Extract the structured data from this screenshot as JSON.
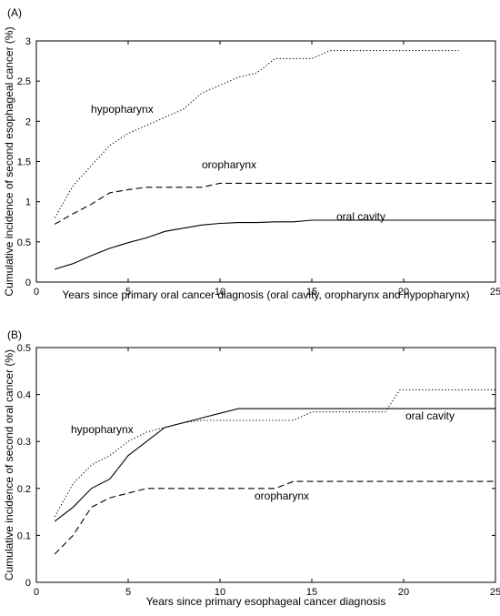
{
  "chart_data": [
    {
      "type": "line",
      "panel_label": "(A)",
      "xlabel": "Years since primary oral cancer diagnosis (oral cavity, oropharynx and hypopharynx)",
      "ylabel": "Cumulative incidence of second esophageal cancer (%)",
      "xlim": [
        0,
        25
      ],
      "ylim": [
        0,
        3
      ],
      "xticks": [
        0,
        5,
        10,
        15,
        20,
        25
      ],
      "yticks": [
        0,
        0.5,
        1,
        1.5,
        2,
        2.5,
        3
      ],
      "grid": false,
      "series": [
        {
          "name": "hypopharynx",
          "style": "dotted",
          "x": [
            1,
            1.5,
            2,
            3,
            4,
            5,
            6,
            7,
            8,
            9,
            10,
            11,
            12,
            13,
            14,
            15,
            16,
            17,
            18,
            19,
            20,
            21,
            22,
            23
          ],
          "y": [
            0.8,
            1.0,
            1.2,
            1.45,
            1.7,
            1.85,
            1.95,
            2.05,
            2.15,
            2.35,
            2.45,
            2.55,
            2.6,
            2.78,
            2.78,
            2.78,
            2.88,
            2.88,
            2.88,
            2.88,
            2.88,
            2.88,
            2.88,
            2.88
          ]
        },
        {
          "name": "oropharynx",
          "style": "dashed",
          "x": [
            1,
            2,
            3,
            4,
            5,
            6,
            7,
            8,
            9,
            10,
            11,
            12,
            13,
            14,
            15,
            16,
            17,
            18,
            19,
            20,
            21,
            22,
            23,
            24,
            25
          ],
          "y": [
            0.72,
            0.85,
            0.97,
            1.11,
            1.15,
            1.18,
            1.18,
            1.18,
            1.18,
            1.23,
            1.23,
            1.23,
            1.23,
            1.23,
            1.23,
            1.23,
            1.23,
            1.23,
            1.23,
            1.23,
            1.23,
            1.23,
            1.23,
            1.23,
            1.23
          ]
        },
        {
          "name": "oral cavity",
          "style": "solid",
          "x": [
            1,
            2,
            3,
            4,
            5,
            6,
            7,
            8,
            9,
            10,
            11,
            12,
            13,
            14,
            15,
            16,
            17,
            18,
            19,
            20,
            21,
            22,
            23,
            24,
            25
          ],
          "y": [
            0.16,
            0.23,
            0.33,
            0.42,
            0.49,
            0.55,
            0.63,
            0.67,
            0.71,
            0.73,
            0.74,
            0.74,
            0.75,
            0.75,
            0.77,
            0.77,
            0.77,
            0.77,
            0.77,
            0.77,
            0.77,
            0.77,
            0.77,
            0.77,
            0.77
          ]
        }
      ]
    },
    {
      "type": "line",
      "panel_label": "(B)",
      "xlabel": "Years since primary esophageal cancer diagnosis",
      "ylabel": "Cumulative incidence of second oral cancer (%)",
      "xlim": [
        0,
        25
      ],
      "ylim": [
        0,
        0.5
      ],
      "xticks": [
        0,
        5,
        10,
        15,
        20,
        25
      ],
      "yticks": [
        0,
        0.1,
        0.2,
        0.3,
        0.4,
        0.5
      ],
      "grid": false,
      "series": [
        {
          "name": "hypopharynx",
          "style": "dotted",
          "x": [
            1,
            2,
            3,
            4,
            5,
            6,
            7,
            8,
            9,
            10,
            11,
            12,
            13,
            14,
            15,
            16,
            17,
            18,
            19,
            19.8,
            20,
            21,
            22,
            23,
            24,
            25
          ],
          "y": [
            0.14,
            0.21,
            0.25,
            0.27,
            0.3,
            0.32,
            0.33,
            0.34,
            0.345,
            0.345,
            0.345,
            0.345,
            0.345,
            0.345,
            0.363,
            0.363,
            0.363,
            0.363,
            0.363,
            0.41,
            0.41,
            0.41,
            0.41,
            0.41,
            0.41,
            0.41
          ]
        },
        {
          "name": "oral cavity",
          "style": "solid",
          "x": [
            1,
            2,
            3,
            4,
            5,
            6,
            7,
            8,
            9,
            10,
            11,
            12,
            13,
            14,
            15,
            16,
            17,
            18,
            19,
            20,
            21,
            22,
            23,
            24,
            25
          ],
          "y": [
            0.13,
            0.16,
            0.2,
            0.22,
            0.27,
            0.3,
            0.33,
            0.34,
            0.35,
            0.36,
            0.37,
            0.37,
            0.37,
            0.37,
            0.37,
            0.37,
            0.37,
            0.37,
            0.37,
            0.37,
            0.37,
            0.37,
            0.37,
            0.37,
            0.37
          ]
        },
        {
          "name": "oropharynx",
          "style": "dashed",
          "x": [
            1,
            2,
            3,
            4,
            5,
            6,
            7,
            8,
            9,
            10,
            11,
            12,
            13,
            14,
            15,
            16,
            17,
            18,
            19,
            20,
            21,
            22,
            23,
            24,
            25
          ],
          "y": [
            0.06,
            0.1,
            0.16,
            0.18,
            0.19,
            0.2,
            0.2,
            0.2,
            0.2,
            0.2,
            0.2,
            0.2,
            0.2,
            0.215,
            0.215,
            0.215,
            0.215,
            0.215,
            0.215,
            0.215,
            0.215,
            0.215,
            0.215,
            0.215,
            0.215
          ]
        }
      ]
    }
  ]
}
